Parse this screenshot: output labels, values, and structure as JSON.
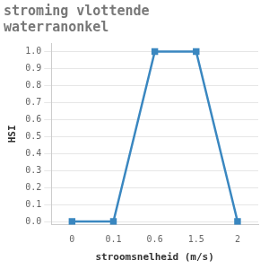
{
  "chart_data": {
    "type": "line",
    "title": "stroming vlottende waterranonkel",
    "x_label": "stroomsnelheid (m/s)",
    "y_label": "HSI",
    "categories": [
      "0",
      "0.1",
      "0.6",
      "1.5",
      "2"
    ],
    "values": [
      0,
      0,
      1,
      1,
      0
    ],
    "color": "#3a87c0",
    "marker": "square",
    "line_style": "solid",
    "ylim": [
      -0.02,
      1.05
    ],
    "yticks": [
      {
        "value": 0,
        "label": "0.0"
      },
      {
        "value": 0.1,
        "label": "0.1"
      },
      {
        "value": 0.2,
        "label": "0.2"
      },
      {
        "value": 0.3,
        "label": "0.3"
      },
      {
        "value": 0.4,
        "label": "0.4"
      },
      {
        "value": 0.5,
        "label": "0.5"
      },
      {
        "value": 0.6,
        "label": "0.6"
      },
      {
        "value": 0.7,
        "label": "0.7"
      },
      {
        "value": 0.8,
        "label": "0.8"
      },
      {
        "value": 0.9,
        "label": "0.9"
      },
      {
        "value": 1,
        "label": "1.0"
      }
    ],
    "grid": true
  }
}
